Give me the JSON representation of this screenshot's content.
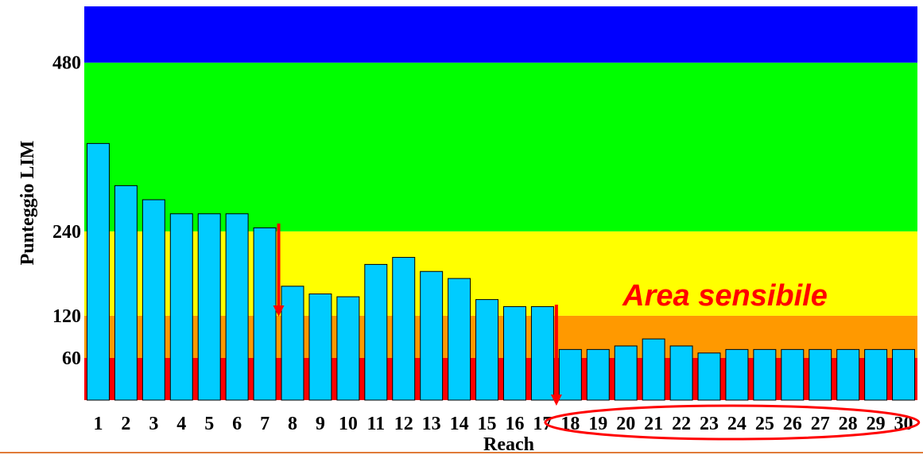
{
  "chart_data": {
    "type": "bar",
    "xlabel": "Reach",
    "ylabel": "Punteggio LIM",
    "ylim": [
      0,
      560
    ],
    "yticks": [
      60,
      120,
      240,
      480
    ],
    "categories": [
      "1",
      "2",
      "3",
      "4",
      "5",
      "6",
      "7",
      "8",
      "9",
      "10",
      "11",
      "12",
      "13",
      "14",
      "15",
      "16",
      "17",
      "18",
      "19",
      "20",
      "21",
      "22",
      "23",
      "24",
      "25",
      "26",
      "27",
      "28",
      "29",
      "30"
    ],
    "values": [
      365,
      305,
      285,
      265,
      265,
      265,
      245,
      162,
      151,
      147,
      193,
      203,
      183,
      173,
      143,
      133,
      133,
      72,
      72,
      77,
      87,
      77,
      67,
      72,
      72,
      72,
      72,
      72,
      72,
      72
    ],
    "bar_color": "#00ccff",
    "bands": [
      {
        "from": 0,
        "to": 60,
        "color": "#ff0000"
      },
      {
        "from": 60,
        "to": 120,
        "color": "#ff9900"
      },
      {
        "from": 120,
        "to": 240,
        "color": "#ffff00"
      },
      {
        "from": 240,
        "to": 480,
        "color": "#00ff00"
      },
      {
        "from": 480,
        "to": 560,
        "color": "#0000ff"
      }
    ],
    "annotation": {
      "text": "Area sensibile",
      "color": "#ff0000"
    },
    "arrows_after_reach": [
      "7",
      "17"
    ],
    "highlighted_reaches": [
      "18",
      "30"
    ]
  }
}
